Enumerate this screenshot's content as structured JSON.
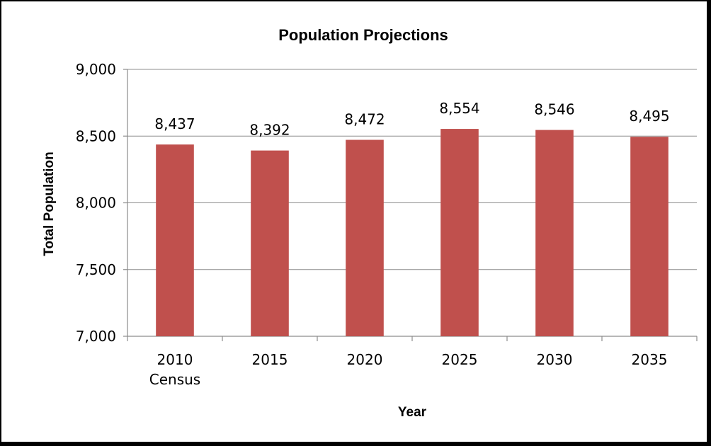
{
  "chart_data": {
    "type": "bar",
    "title": "Population Projections",
    "xlabel": "Year",
    "ylabel": "Total Population",
    "categories": [
      [
        "2010",
        "Census"
      ],
      [
        "2015"
      ],
      [
        "2020"
      ],
      [
        "2025"
      ],
      [
        "2030"
      ],
      [
        "2035"
      ]
    ],
    "values": [
      8437,
      8392,
      8472,
      8554,
      8546,
      8495
    ],
    "value_labels": [
      "8,437",
      "8,392",
      "8,472",
      "8,554",
      "8,546",
      "8,495"
    ],
    "ylim": [
      7000,
      9000
    ],
    "yticks": [
      7000,
      7500,
      8000,
      8500,
      9000
    ],
    "ytick_labels": [
      "7,000",
      "7,500",
      "8,000",
      "8,500",
      "9,000"
    ],
    "grid": true,
    "legend": "none",
    "bar_color": "#c0504d"
  }
}
